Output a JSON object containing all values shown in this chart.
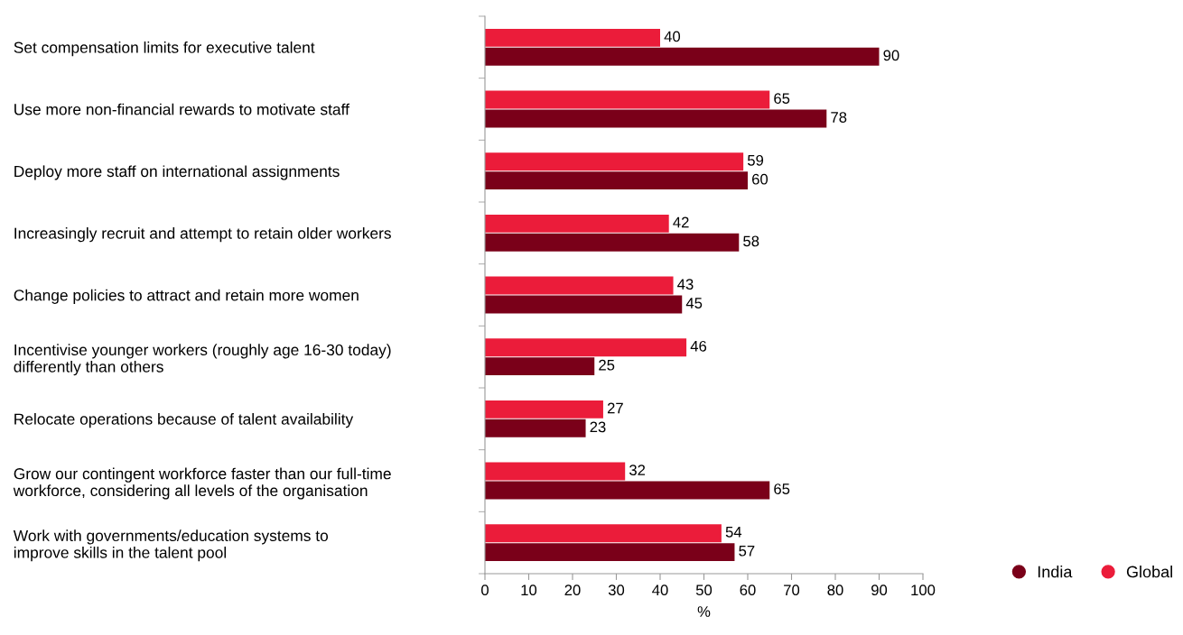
{
  "chart_data": {
    "type": "bar",
    "orientation": "horizontal",
    "categories": [
      "Set compensation limits for executive talent",
      "Use more non-financial rewards to motivate staff",
      "Deploy more staff on international assignments",
      "Increasingly recruit and attempt to retain older workers",
      "Change policies to attract and retain more women",
      "Incentivise younger workers (roughly age 16-30 today)\ndifferently than others",
      "Relocate operations because of talent availability",
      "Grow our contingent workforce faster than our full-time\nworkforce, considering all levels of the organisation",
      "Work with governments/education systems to\nimprove skills in the talent pool"
    ],
    "series": [
      {
        "name": "India",
        "color": "#7a0019",
        "values": [
          90,
          78,
          60,
          58,
          45,
          25,
          23,
          65,
          57
        ]
      },
      {
        "name": "Global",
        "color": "#eb1c3a",
        "values": [
          40,
          65,
          59,
          42,
          43,
          46,
          27,
          32,
          54
        ]
      }
    ],
    "xlim": [
      0,
      100
    ],
    "xticks": [
      0,
      10,
      20,
      30,
      40,
      50,
      60,
      70,
      80,
      90,
      100
    ],
    "xlabel": "%",
    "data_labels": true,
    "grid": false,
    "legend": "bottom right"
  }
}
